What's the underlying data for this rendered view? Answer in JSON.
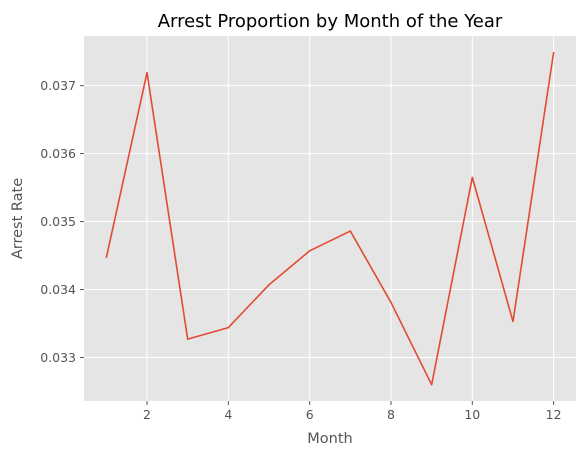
{
  "chart_data": {
    "type": "line",
    "title": "Arrest Proportion by Month of the Year",
    "xlabel": "Month",
    "ylabel": "Arrest Rate",
    "x": [
      1,
      2,
      3,
      4,
      5,
      6,
      7,
      8,
      9,
      10,
      11,
      12
    ],
    "series": [
      {
        "values": [
          0.03447,
          0.03719,
          0.03327,
          0.03344,
          0.03407,
          0.03457,
          0.03486,
          0.03381,
          0.0326,
          0.03565,
          0.03353,
          0.03749
        ],
        "color": "#E24A33"
      }
    ],
    "xlim": [
      0.45,
      12.55
    ],
    "ylim": [
      0.03236,
      0.03773
    ],
    "xticks": [
      2,
      4,
      6,
      8,
      10,
      12
    ],
    "xtick_labels": [
      "2",
      "4",
      "6",
      "8",
      "10",
      "12"
    ],
    "yticks": [
      0.033,
      0.034,
      0.035,
      0.036,
      0.037
    ],
    "ytick_labels": [
      "0.033",
      "0.034",
      "0.035",
      "0.036",
      "0.037"
    ],
    "grid": true,
    "legend": "none",
    "background_color": "#E5E5E5",
    "grid_color": "#FFFFFF"
  }
}
